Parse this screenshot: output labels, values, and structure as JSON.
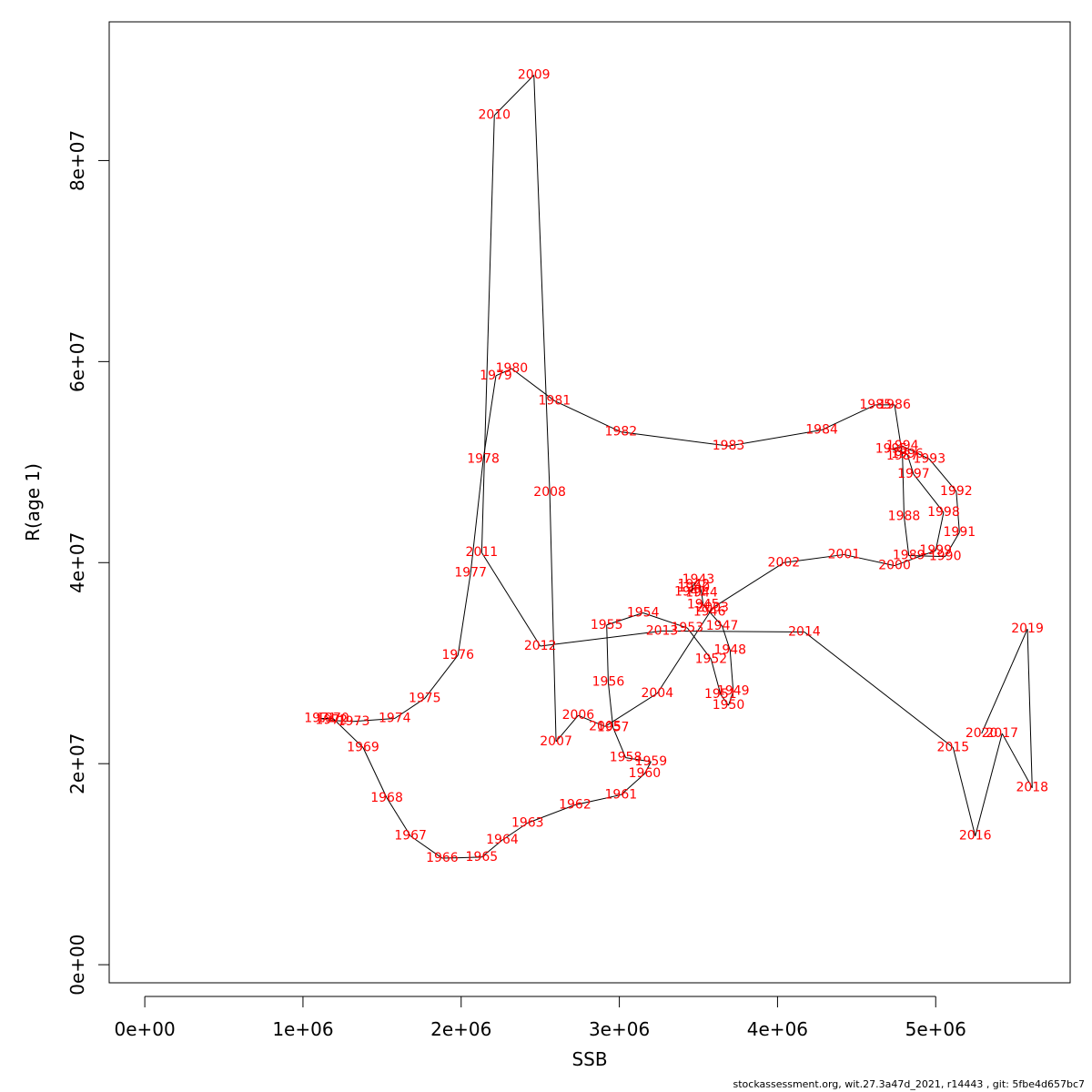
{
  "footer": "stockassessment.org, wit.27.3a47d_2021, r14443 , git: 5fbe4d657bc7",
  "chart_data": {
    "type": "line",
    "title": "",
    "xlabel": "SSB",
    "ylabel": "R(age 1)",
    "xlim": [
      -225000,
      5850000
    ],
    "ylim": [
      -1800000,
      93800000
    ],
    "xticks": [
      0,
      1000000,
      2000000,
      3000000,
      4000000,
      5000000
    ],
    "xtick_labels": [
      "0e+00",
      "1e+06",
      "2e+06",
      "3e+06",
      "4e+06",
      "5e+06"
    ],
    "yticks": [
      0,
      20000000,
      40000000,
      60000000,
      80000000
    ],
    "ytick_labels": [
      "0e+00",
      "2e+07",
      "4e+07",
      "6e+07",
      "8e+07"
    ],
    "grid": false,
    "line_color": "#000000",
    "label_color": "#ff0000",
    "points": [
      {
        "year": "1940",
        "ssb": 3470000,
        "r": 37500000
      },
      {
        "year": "1941",
        "ssb": 3450000,
        "r": 37100000
      },
      {
        "year": "1942",
        "ssb": 3470000,
        "r": 37800000
      },
      {
        "year": "1943",
        "ssb": 3500000,
        "r": 38300000
      },
      {
        "year": "1944",
        "ssb": 3520000,
        "r": 37000000
      },
      {
        "year": "1945",
        "ssb": 3530000,
        "r": 35800000
      },
      {
        "year": "1946",
        "ssb": 3570000,
        "r": 35100000
      },
      {
        "year": "1947",
        "ssb": 3650000,
        "r": 33700000
      },
      {
        "year": "1948",
        "ssb": 3700000,
        "r": 31300000
      },
      {
        "year": "1949",
        "ssb": 3720000,
        "r": 27200000
      },
      {
        "year": "1950",
        "ssb": 3690000,
        "r": 25800000
      },
      {
        "year": "1951",
        "ssb": 3640000,
        "r": 26900000
      },
      {
        "year": "1952",
        "ssb": 3580000,
        "r": 30400000
      },
      {
        "year": "1953",
        "ssb": 3430000,
        "r": 33500000
      },
      {
        "year": "1954",
        "ssb": 3150000,
        "r": 35000000
      },
      {
        "year": "1955",
        "ssb": 2920000,
        "r": 33800000
      },
      {
        "year": "1956",
        "ssb": 2930000,
        "r": 28100000
      },
      {
        "year": "1957",
        "ssb": 2960000,
        "r": 23600000
      },
      {
        "year": "1958",
        "ssb": 3040000,
        "r": 20600000
      },
      {
        "year": "1959",
        "ssb": 3200000,
        "r": 20200000
      },
      {
        "year": "1960",
        "ssb": 3160000,
        "r": 19000000
      },
      {
        "year": "1961",
        "ssb": 3010000,
        "r": 16900000
      },
      {
        "year": "1962",
        "ssb": 2720000,
        "r": 15900000
      },
      {
        "year": "1963",
        "ssb": 2420000,
        "r": 14100000
      },
      {
        "year": "1964",
        "ssb": 2260000,
        "r": 12400000
      },
      {
        "year": "1965",
        "ssb": 2130000,
        "r": 10700000
      },
      {
        "year": "1966",
        "ssb": 1880000,
        "r": 10600000
      },
      {
        "year": "1967",
        "ssb": 1680000,
        "r": 12800000
      },
      {
        "year": "1968",
        "ssb": 1530000,
        "r": 16600000
      },
      {
        "year": "1969",
        "ssb": 1380000,
        "r": 21600000
      },
      {
        "year": "1970",
        "ssb": 1190000,
        "r": 24500000
      },
      {
        "year": "1971",
        "ssb": 1110000,
        "r": 24500000
      },
      {
        "year": "1972",
        "ssb": 1180000,
        "r": 24300000
      },
      {
        "year": "1973",
        "ssb": 1320000,
        "r": 24200000
      },
      {
        "year": "1974",
        "ssb": 1580000,
        "r": 24500000
      },
      {
        "year": "1975",
        "ssb": 1770000,
        "r": 26500000
      },
      {
        "year": "1976",
        "ssb": 1980000,
        "r": 30800000
      },
      {
        "year": "1977",
        "ssb": 2060000,
        "r": 39000000
      },
      {
        "year": "1978",
        "ssb": 2140000,
        "r": 50300000
      },
      {
        "year": "1979",
        "ssb": 2220000,
        "r": 58600000
      },
      {
        "year": "1980",
        "ssb": 2320000,
        "r": 59300000
      },
      {
        "year": "1981",
        "ssb": 2590000,
        "r": 56100000
      },
      {
        "year": "1982",
        "ssb": 3010000,
        "r": 53000000
      },
      {
        "year": "1983",
        "ssb": 3690000,
        "r": 51600000
      },
      {
        "year": "1984",
        "ssb": 4280000,
        "r": 53200000
      },
      {
        "year": "1985",
        "ssb": 4620000,
        "r": 55700000
      },
      {
        "year": "1986",
        "ssb": 4740000,
        "r": 55700000
      },
      {
        "year": "1987",
        "ssb": 4790000,
        "r": 50600000
      },
      {
        "year": "1988",
        "ssb": 4800000,
        "r": 44600000
      },
      {
        "year": "1989",
        "ssb": 4830000,
        "r": 40700000
      },
      {
        "year": "1990",
        "ssb": 5060000,
        "r": 40600000
      },
      {
        "year": "1991",
        "ssb": 5150000,
        "r": 43000000
      },
      {
        "year": "1992",
        "ssb": 5130000,
        "r": 47100000
      },
      {
        "year": "1993",
        "ssb": 4960000,
        "r": 50300000
      },
      {
        "year": "1994",
        "ssb": 4790000,
        "r": 51600000
      },
      {
        "year": "1995",
        "ssb": 4720000,
        "r": 51300000
      },
      {
        "year": "1996",
        "ssb": 4820000,
        "r": 50800000
      },
      {
        "year": "1997",
        "ssb": 4860000,
        "r": 48800000
      },
      {
        "year": "1998",
        "ssb": 5050000,
        "r": 45000000
      },
      {
        "year": "1999",
        "ssb": 5000000,
        "r": 41200000
      },
      {
        "year": "2000",
        "ssb": 4740000,
        "r": 39700000
      },
      {
        "year": "2001",
        "ssb": 4420000,
        "r": 40800000
      },
      {
        "year": "2002",
        "ssb": 4040000,
        "r": 40000000
      },
      {
        "year": "2003",
        "ssb": 3590000,
        "r": 35500000
      },
      {
        "year": "2004",
        "ssb": 3240000,
        "r": 27000000
      },
      {
        "year": "2005",
        "ssb": 2910000,
        "r": 23700000
      },
      {
        "year": "2006",
        "ssb": 2740000,
        "r": 24800000
      },
      {
        "year": "2007",
        "ssb": 2600000,
        "r": 22200000
      },
      {
        "year": "2008",
        "ssb": 2560000,
        "r": 47000000
      },
      {
        "year": "2009",
        "ssb": 2460000,
        "r": 88500000
      },
      {
        "year": "2010",
        "ssb": 2210000,
        "r": 84500000
      },
      {
        "year": "2011",
        "ssb": 2130000,
        "r": 41000000
      },
      {
        "year": "2012",
        "ssb": 2500000,
        "r": 31700000
      },
      {
        "year": "2013",
        "ssb": 3270000,
        "r": 33200000
      },
      {
        "year": "2014",
        "ssb": 4170000,
        "r": 33100000
      },
      {
        "year": "2015",
        "ssb": 5110000,
        "r": 21600000
      },
      {
        "year": "2016",
        "ssb": 5250000,
        "r": 12800000
      },
      {
        "year": "2017",
        "ssb": 5420000,
        "r": 23000000
      },
      {
        "year": "2018",
        "ssb": 5610000,
        "r": 17600000
      },
      {
        "year": "2019",
        "ssb": 5580000,
        "r": 33400000
      },
      {
        "year": "2020",
        "ssb": 5290000,
        "r": 23000000
      }
    ]
  }
}
